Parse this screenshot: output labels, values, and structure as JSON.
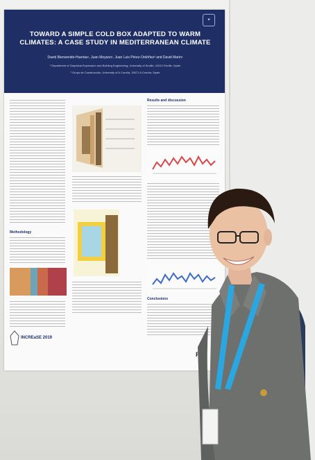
{
  "poster": {
    "title": "TOWARD A SIMPLE COLD BOX ADAPTED TO WARM CLIMATES: A CASE STUDY IN MEDITERRANEAN CLIMATE",
    "authors": "David Bienvenido-Huertas¹, Juan Moyano¹, Juan Luis Pérez-Ordóñez² and David Marín¹",
    "affiliation_1": "¹ Department of Graphical Expression and Building Engineering, University of Seville, 41012 Seville, Spain",
    "affiliation_2": "² Grupo de Construcción, University of A Coruña, 15071 A Coruña, Spain",
    "section_results": "Results and discussion",
    "section_methodology": "Methodology",
    "section_conclusions": "Conclusions",
    "conference": "INCREaSE 2019",
    "booth_label": "PZ",
    "colors": {
      "header": "#1f2f66",
      "shirt": "#6e706e",
      "lanyard": "#2aa7e0",
      "backpack": "#2b3b5c"
    }
  }
}
